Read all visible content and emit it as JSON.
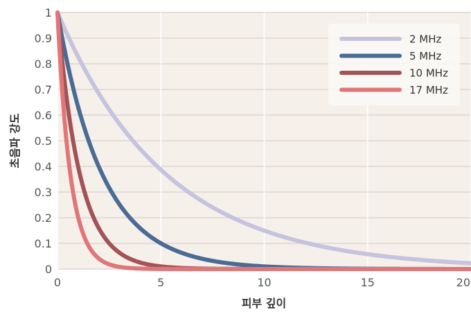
{
  "chart_data": {
    "type": "line",
    "title": "",
    "xlabel": "피부 깊이",
    "ylabel": "초음파 강도",
    "xlim": [
      0,
      20
    ],
    "ylim": [
      0,
      1
    ],
    "x_ticks": [
      "0",
      "5",
      "10",
      "15",
      "20"
    ],
    "y_ticks": [
      "0",
      "0.1",
      "0.2",
      "0.3",
      "0.4",
      "0.5",
      "0.6",
      "0.7",
      "0.8",
      "0.9",
      "1"
    ],
    "grid": true,
    "legend_position": "top-right",
    "background_color": "#f6f0ea",
    "grid_color": "#ffffff",
    "series": [
      {
        "name": "2 MHz",
        "color": "#c5c3de",
        "decay_rate": 0.19,
        "x": [
          0,
          2.5,
          5,
          7.5,
          10,
          12.5,
          15,
          17.5,
          20
        ],
        "y": [
          1.0,
          0.62,
          0.39,
          0.24,
          0.15,
          0.09,
          0.058,
          0.036,
          0.023
        ]
      },
      {
        "name": "5 MHz",
        "color": "#4a6b94",
        "decay_rate": 0.46,
        "x": [
          0,
          1,
          2,
          3,
          4,
          5,
          6,
          8,
          10,
          12,
          15,
          20
        ],
        "y": [
          1.0,
          0.63,
          0.4,
          0.25,
          0.16,
          0.1,
          0.063,
          0.025,
          0.01,
          0.004,
          0.001,
          0.0
        ]
      },
      {
        "name": "10 MHz",
        "color": "#a35356",
        "decay_rate": 0.92,
        "x": [
          0,
          0.5,
          1,
          1.5,
          2,
          3,
          4,
          5,
          6,
          8,
          10,
          20
        ],
        "y": [
          1.0,
          0.63,
          0.4,
          0.25,
          0.16,
          0.063,
          0.025,
          0.01,
          0.004,
          0.0006,
          0.0001,
          0.0
        ]
      },
      {
        "name": "17 MHz",
        "color": "#df7778",
        "decay_rate": 1.6,
        "x": [
          0,
          0.25,
          0.5,
          0.75,
          1,
          1.5,
          2,
          2.5,
          3,
          4,
          5,
          20
        ],
        "y": [
          1.0,
          0.67,
          0.45,
          0.3,
          0.2,
          0.09,
          0.041,
          0.018,
          0.008,
          0.0017,
          0.0003,
          0.0
        ]
      }
    ]
  }
}
